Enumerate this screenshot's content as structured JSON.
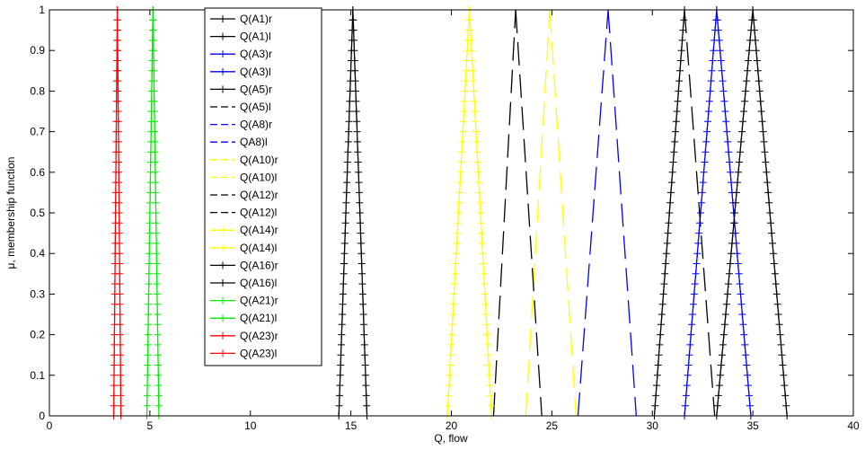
{
  "chart_data": {
    "type": "line",
    "title": "",
    "xlabel": "Q, flow",
    "ylabel": "μ, membership function",
    "xlim": [
      0,
      40
    ],
    "ylim": [
      0,
      1
    ],
    "xticks": [
      0,
      5,
      10,
      15,
      20,
      25,
      30,
      35,
      40
    ],
    "yticks": [
      0,
      0.1,
      0.2,
      0.3,
      0.4,
      0.5,
      0.6,
      0.7,
      0.8,
      0.9,
      1
    ],
    "grid": false,
    "legend_position": "top-left-inside",
    "series": [
      {
        "name": "Q(A1)r",
        "color": "#000000",
        "style": "plus-line",
        "x": [
          14.4,
          15.1
        ],
        "y": [
          0,
          1
        ]
      },
      {
        "name": "Q(A1)l",
        "color": "#000000",
        "style": "plus-line",
        "x": [
          15.1,
          15.8
        ],
        "y": [
          1,
          0
        ]
      },
      {
        "name": "Q(A3)r",
        "color": "#0000ff",
        "style": "plus-line",
        "x": [
          31.6,
          33.2
        ],
        "y": [
          0,
          1
        ]
      },
      {
        "name": "Q(A3)l",
        "color": "#0000ff",
        "style": "plus-line",
        "x": [
          33.2,
          34.9
        ],
        "y": [
          1,
          0
        ]
      },
      {
        "name": "Q(A5)r",
        "color": "#000000",
        "style": "plus-line",
        "x": [
          30.1,
          31.6
        ],
        "y": [
          0,
          1
        ]
      },
      {
        "name": "Q(A5)l",
        "color": "#000000",
        "style": "dashed",
        "x": [
          31.6,
          33.1
        ],
        "y": [
          1,
          0
        ]
      },
      {
        "name": "Q(A8)r",
        "color": "#0000ff",
        "style": "dashed",
        "x": [
          26.3,
          27.8
        ],
        "y": [
          0,
          1
        ]
      },
      {
        "name": "QA8)l",
        "color": "#0000ff",
        "style": "dashed",
        "x": [
          27.8,
          29.2
        ],
        "y": [
          1,
          0
        ]
      },
      {
        "name": "Q(A10)r",
        "color": "#ffff00",
        "style": "dashed",
        "x": [
          23.7,
          24.9
        ],
        "y": [
          0,
          1
        ]
      },
      {
        "name": "Q(A10)l",
        "color": "#ffff00",
        "style": "dashed",
        "x": [
          24.9,
          26.2
        ],
        "y": [
          1,
          0
        ]
      },
      {
        "name": "Q(A12)r",
        "color": "#000000",
        "style": "dashed",
        "x": [
          22.1,
          23.2
        ],
        "y": [
          0,
          1
        ]
      },
      {
        "name": "Q(A12)l",
        "color": "#000000",
        "style": "dashed",
        "x": [
          23.2,
          24.5
        ],
        "y": [
          1,
          0
        ]
      },
      {
        "name": "Q(A14)r",
        "color": "#ffff00",
        "style": "plus-line",
        "x": [
          19.8,
          20.9
        ],
        "y": [
          0,
          1
        ]
      },
      {
        "name": "Q(A14)l",
        "color": "#ffff00",
        "style": "plus-line",
        "x": [
          20.9,
          22.0
        ],
        "y": [
          1,
          0
        ]
      },
      {
        "name": "Q(A16)r",
        "color": "#000000",
        "style": "plus-line",
        "x": [
          33.2,
          35.0
        ],
        "y": [
          0,
          1
        ]
      },
      {
        "name": "Q(A16)l",
        "color": "#000000",
        "style": "plus-line",
        "x": [
          35.0,
          36.7
        ],
        "y": [
          1,
          0
        ]
      },
      {
        "name": "Q(A21)r",
        "color": "#00ee00",
        "style": "plus-line",
        "x": [
          4.85,
          5.15
        ],
        "y": [
          0,
          1
        ]
      },
      {
        "name": "Q(A21)l",
        "color": "#00ee00",
        "style": "plus-line",
        "x": [
          5.15,
          5.45
        ],
        "y": [
          1,
          0
        ]
      },
      {
        "name": "Q(A23)r",
        "color": "#ff0000",
        "style": "plus-line",
        "x": [
          3.2,
          3.38
        ],
        "y": [
          0,
          1
        ]
      },
      {
        "name": "Q(A23)l",
        "color": "#ff0000",
        "style": "plus-line",
        "x": [
          3.38,
          3.56
        ],
        "y": [
          1,
          0
        ]
      }
    ]
  }
}
